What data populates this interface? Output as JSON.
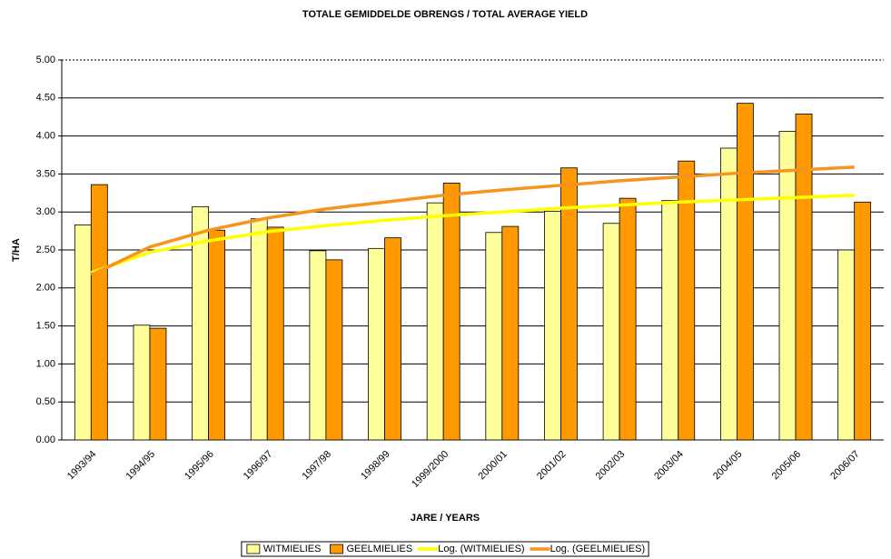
{
  "chart_data": {
    "type": "bar",
    "title": "TOTALE GEMIDDELDE OBRENGS / TOTAL AVERAGE YIELD",
    "x_label": "JARE / YEARS",
    "y_label": "T/HA",
    "categories": [
      "1993/94",
      "1994/95",
      "1995/96",
      "1996/97",
      "1997/98",
      "1998/99",
      "1999/2000",
      "2000/01",
      "2001/02",
      "2002/03",
      "2003/04",
      "2004/05",
      "2005/06",
      "2006/07"
    ],
    "series": [
      {
        "name": "WITMIELIES",
        "type": "bar",
        "color": "#ffff99",
        "values": [
          2.83,
          1.51,
          3.07,
          2.91,
          2.49,
          2.52,
          3.12,
          2.73,
          3.01,
          2.85,
          3.15,
          3.84,
          4.06,
          2.5
        ]
      },
      {
        "name": "GEELMIELIES",
        "type": "bar",
        "color": "#ff9900",
        "values": [
          3.36,
          1.47,
          2.76,
          2.8,
          2.37,
          2.66,
          3.38,
          2.81,
          3.58,
          3.18,
          3.67,
          4.43,
          4.29,
          3.13
        ]
      },
      {
        "name": "Log. (WITMIELIES)",
        "type": "line",
        "color": "#ffff00",
        "values": [
          2.2,
          2.47,
          2.62,
          2.74,
          2.82,
          2.89,
          2.95,
          3.0,
          3.05,
          3.09,
          3.13,
          3.16,
          3.19,
          3.22
        ]
      },
      {
        "name": "Log. (GEELMIELIES)",
        "type": "line",
        "color": "#f7941d",
        "values": [
          2.17,
          2.54,
          2.76,
          2.92,
          3.04,
          3.13,
          3.22,
          3.29,
          3.35,
          3.41,
          3.46,
          3.51,
          3.55,
          3.59
        ]
      }
    ],
    "ylim": [
      0,
      5
    ],
    "yticks": [
      {
        "value": 0,
        "label": "0.00"
      },
      {
        "value": 0.5,
        "label": "0.50"
      },
      {
        "value": 1,
        "label": "1.00"
      },
      {
        "value": 1.5,
        "label": "1.50"
      },
      {
        "value": 2,
        "label": "2.00"
      },
      {
        "value": 2.5,
        "label": "2.50"
      },
      {
        "value": 3,
        "label": "3.00"
      },
      {
        "value": 3.5,
        "label": "3.50"
      },
      {
        "value": 4,
        "label": "4.00"
      },
      {
        "value": 4.5,
        "label": "4.50"
      },
      {
        "value": 5,
        "label": "5.00"
      }
    ],
    "grid": true,
    "legend": "bottom"
  }
}
